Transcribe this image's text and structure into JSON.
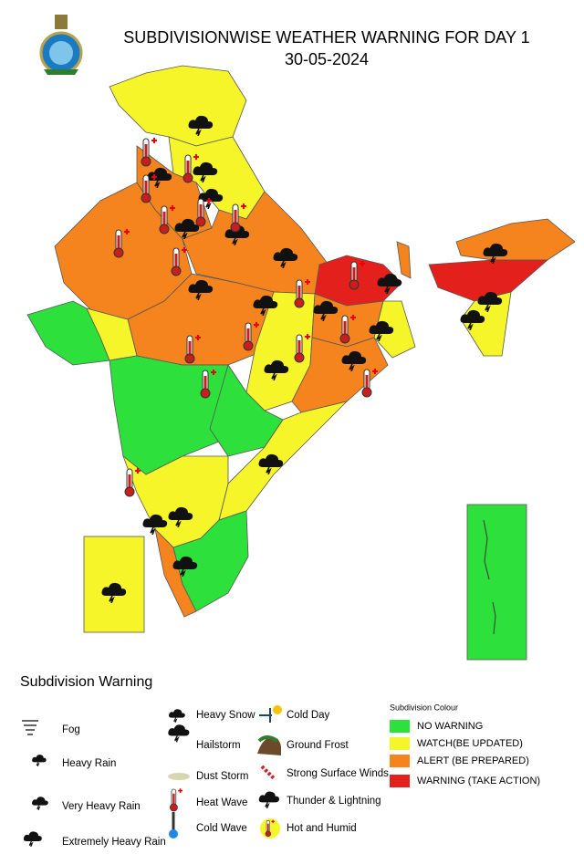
{
  "header": {
    "title": "SUBDIVISIONWISE WEATHER WARNING FOR DAY 1",
    "date": "30-05-2024"
  },
  "legend": {
    "title": "Subdivision Warning",
    "items": [
      "Fog",
      "Heavy Rain",
      "Very Heavy Rain",
      "Extremely Heavy Rain",
      "Heavy Snow",
      "Hailstorm",
      "Dust Storm",
      "Heat Wave",
      "Cold Wave",
      "Cold Day",
      "Ground Frost",
      "Strong Surface Winds",
      "Thunder & Lightning",
      "Hot and Humid"
    ]
  },
  "colour_legend": {
    "title": "Subdivision Colour",
    "items": [
      {
        "label": "NO WARNING",
        "color": "#2ee03c"
      },
      {
        "label": "WATCH(BE UPDATED)",
        "color": "#f5f52a"
      },
      {
        "label": "ALERT (BE PREPARED)",
        "color": "#f5841f"
      },
      {
        "label": "WARNING (TAKE ACTION)",
        "color": "#e3201b"
      }
    ]
  }
}
